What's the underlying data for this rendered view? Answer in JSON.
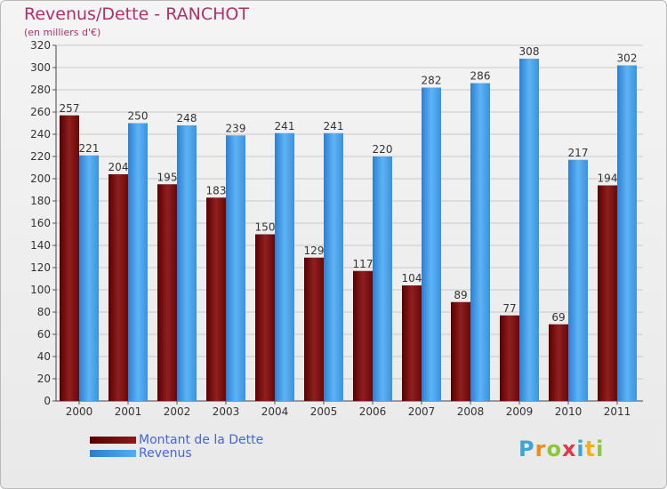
{
  "chart_data": {
    "type": "bar",
    "title": "Revenus/Dette - RANCHOT",
    "subtitle": "(en milliers d'€)",
    "categories": [
      "2000",
      "2001",
      "2002",
      "2003",
      "2004",
      "2005",
      "2006",
      "2007",
      "2008",
      "2009",
      "2010",
      "2011"
    ],
    "series": [
      {
        "name": "Montant de la Dette",
        "color": "#7a0c0c",
        "values": [
          257,
          204,
          195,
          183,
          150,
          129,
          117,
          104,
          89,
          77,
          69,
          194
        ]
      },
      {
        "name": "Revenus",
        "color": "#3d96e3",
        "values": [
          221,
          250,
          248,
          239,
          241,
          241,
          220,
          282,
          286,
          308,
          217,
          302
        ]
      }
    ],
    "ylim": [
      0,
      320
    ],
    "yticks": [
      0,
      20,
      40,
      60,
      80,
      100,
      120,
      140,
      160,
      180,
      200,
      220,
      240,
      260,
      280,
      300,
      320
    ],
    "grid": true,
    "legend_position": "bottom-left"
  },
  "legend": {
    "dette_label": "Montant de la Dette",
    "revenus_label": "Revenus"
  },
  "logo": {
    "letters": [
      "P",
      "r",
      "o",
      "x",
      "i",
      "t",
      "i"
    ]
  }
}
